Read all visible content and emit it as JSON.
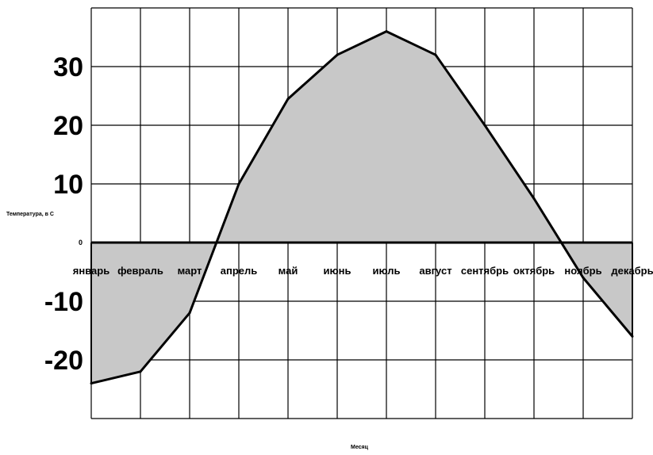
{
  "chart_data": {
    "type": "area",
    "ylabel": "Температура, в С",
    "xlabel": "Месяц",
    "categories": [
      "январь",
      "февраль",
      "март",
      "апрель",
      "май",
      "июнь",
      "июль",
      "август",
      "сентябрь",
      "октябрь",
      "ноябрь",
      "декабрь"
    ],
    "series": [
      {
        "values": [
          -24,
          -22,
          -12,
          10,
          24.5,
          32,
          36,
          32,
          20,
          7.5,
          -6,
          -16
        ]
      }
    ],
    "ylim": [
      -30,
      40
    ],
    "yticks": [
      {
        "value": 30,
        "label": "30"
      },
      {
        "value": 20,
        "label": "20"
      },
      {
        "value": 10,
        "label": "10"
      },
      {
        "value": 0,
        "label": "0"
      },
      {
        "value": -10,
        "label": "-10"
      },
      {
        "value": -20,
        "label": "-20"
      }
    ],
    "grid": true,
    "colors": {
      "fill": "#c8c8c8",
      "line": "#000000",
      "grid": "#000000"
    }
  }
}
